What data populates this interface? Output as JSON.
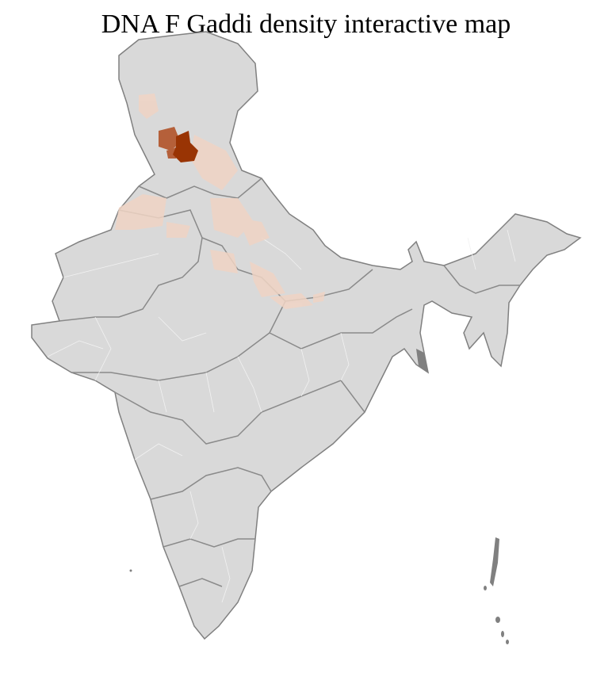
{
  "title": "DNA F Gaddi density interactive map",
  "colors": {
    "land": "#d9d9d9",
    "district_border": "#f2f2f2",
    "state_border": "#808080",
    "density_low": "#f0d4c4",
    "density_mid": "#b5603a",
    "density_high": "#993404"
  }
}
